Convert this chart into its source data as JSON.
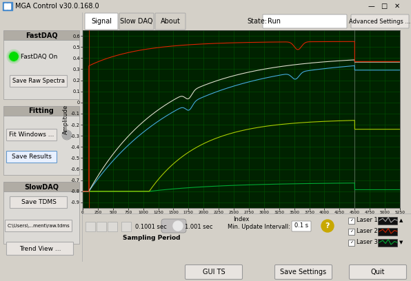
{
  "title": "MGA Control v30.0.168.0",
  "tab_labels": [
    "Signal",
    "Slow DAQ",
    "About"
  ],
  "state_value": "Run",
  "advanced_btn": "Advanced Settings ...",
  "bottom_btns": [
    "GUI TS",
    "Save Settings",
    "Quit"
  ],
  "plot_bg": "#002200",
  "plot_grid_color": "#005500",
  "xlabel": "Index",
  "ylabel": "Amplitude",
  "xticks": [
    0,
    250,
    500,
    750,
    1000,
    1250,
    1500,
    1750,
    2000,
    2250,
    2500,
    2750,
    3000,
    3250,
    3500,
    3750,
    4000,
    4250,
    4500,
    4750,
    5000,
    5250
  ],
  "yticks": [
    -0.9,
    -0.8,
    -0.7,
    -0.6,
    -0.5,
    -0.4,
    -0.3,
    -0.2,
    -0.1,
    0.0,
    0.1,
    0.2,
    0.3,
    0.4,
    0.5,
    0.6
  ],
  "ylim": [
    -0.95,
    0.65
  ],
  "xlim": [
    0,
    5250
  ],
  "laser_labels": [
    "Laser 1",
    "Laser 2",
    "Laser 3"
  ],
  "laser_colors": [
    "#aaaaaa",
    "#cc2200",
    "#00bb44"
  ],
  "sampling_label": "Sampling Period",
  "sampling_left": "0.1001 sec",
  "sampling_right": "1.001 sec",
  "min_update": "Min. Update Intervall:",
  "min_update_val": "0.1 s",
  "window_bg": "#d4d0c8",
  "title_bg": "#d4d0c8",
  "panel_header_bg": "#b0aca4",
  "panel_body_bg": "#dcdad6"
}
